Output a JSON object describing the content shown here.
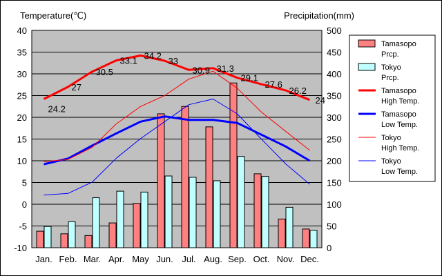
{
  "colors": {
    "plot_bg": "#c0c0c0",
    "grid": "#000000",
    "tamasopo_prcp_fill": "#ff8080",
    "tokyo_prcp_fill": "#c0ffff",
    "bar_stroke": "#000000",
    "tamasopo_high": "#ff0000",
    "tamasopo_low": "#0000ff",
    "tokyo_high": "#ff0000",
    "tokyo_low": "#0000ff"
  },
  "chart_data": {
    "type": "bar+line",
    "title": "",
    "ylabel_left": "Temperature(℃)",
    "ylabel_right": "Precipitation(mm)",
    "ylim_left": [
      -10,
      40
    ],
    "ylim_right": [
      0,
      500
    ],
    "yticks_left": [
      "40",
      "35",
      "30",
      "25",
      "20",
      "15",
      "10",
      "5",
      "0",
      "-5",
      "-10"
    ],
    "yticks_right": [
      "500",
      "450",
      "400",
      "350",
      "300",
      "250",
      "200",
      "150",
      "100",
      "50",
      "0"
    ],
    "grid": true,
    "legend_position": "right",
    "categories": [
      "Jan.",
      "Feb.",
      "Mar.",
      "Apr.",
      "May",
      "Jun.",
      "Jul.",
      "Aug.",
      "Sep.",
      "Oct.",
      "Nov.",
      "Dec."
    ],
    "bar_series": [
      {
        "name": "Tamasopo Prcp.",
        "legend": [
          "Tamasopo",
          "Prcp."
        ],
        "values": [
          38,
          32,
          28,
          57,
          102,
          308,
          325,
          278,
          379,
          170,
          66,
          43
        ],
        "color": "#ff8080"
      },
      {
        "name": "Tokyo Prcp.",
        "legend": [
          "Tokyo",
          "Prcp."
        ],
        "values": [
          49,
          60,
          115,
          130,
          128,
          165,
          162,
          154,
          210,
          164,
          93,
          40
        ],
        "color": "#c0ffff"
      }
    ],
    "line_series": [
      {
        "name": "Tamasopo High Temp.",
        "legend": [
          "Tamasopo",
          "High Temp."
        ],
        "values": [
          24.2,
          27,
          30.5,
          33.1,
          34.2,
          33,
          30.9,
          31.3,
          29.1,
          27.6,
          26.2,
          24
        ],
        "color": "#ff0000",
        "width": 3
      },
      {
        "name": "Tamasopo Low Temp.",
        "legend": [
          "Tamasopo",
          "Low Temp."
        ],
        "values": [
          9.2,
          10.5,
          13.5,
          16.3,
          19,
          20.2,
          19.4,
          19.4,
          18.7,
          16,
          13.3,
          10
        ],
        "color": "#0000ff",
        "width": 3
      },
      {
        "name": "Tokyo High Temp.",
        "legend": [
          "Tokyo",
          "High Temp."
        ],
        "values": [
          9.8,
          10.3,
          13.1,
          18.5,
          22.5,
          25,
          28.8,
          30.6,
          26.7,
          21.2,
          16.8,
          12.4
        ],
        "color": "#ff0000",
        "width": 1
      },
      {
        "name": "Tokyo Low Temp.",
        "legend": [
          "Tokyo",
          "Low Temp."
        ],
        "values": [
          2.1,
          2.5,
          5.1,
          10.6,
          15.1,
          19,
          22.9,
          24.2,
          20.8,
          15,
          9.3,
          4.6
        ],
        "color": "#0000ff",
        "width": 1
      }
    ],
    "annotations": {
      "series": "Tamasopo High Temp.",
      "labels": [
        "24.2",
        "27",
        "30.5",
        "33.1",
        "34.2",
        "33",
        "30.9",
        "31.3",
        "29.1",
        "27.6",
        "26.2",
        "24"
      ]
    }
  }
}
